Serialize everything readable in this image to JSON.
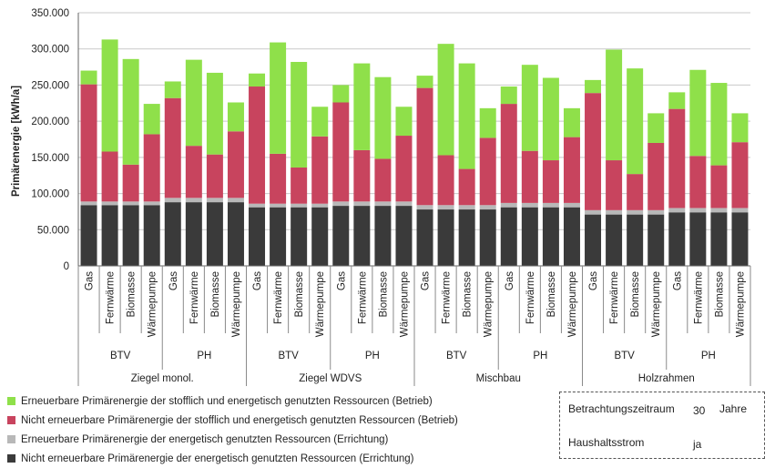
{
  "chart_data": {
    "type": "bar",
    "stacked": true,
    "ylabel": "Primärenergie [kWh/a]",
    "ylim": [
      0,
      350000
    ],
    "yticks": [
      "0",
      "50.000",
      "100.000",
      "150.000",
      "200.000",
      "250.000",
      "300.000",
      "350.000"
    ],
    "grid": true,
    "legend_position": "bottom-left",
    "categories": [
      "Gas",
      "Fernwärme",
      "Biomasse",
      "Wärmepumpe"
    ],
    "level2": [
      "BTV",
      "PH"
    ],
    "level3": [
      "Ziegel monol.",
      "Ziegel WDVS",
      "Mischbau",
      "Holzrahmen"
    ],
    "series": [
      {
        "name": "Nicht erneuerbare Primärenergie der energetisch genutzten Ressourcen (Errichtung)",
        "color": "#3a3a3a"
      },
      {
        "name": "Erneuerbare Primärenergie der energetisch genutzten Ressourcen (Errichtung)",
        "color": "#b8b8b8"
      },
      {
        "name": "Nicht erneuerbare Primärenergie der stofflich und energetisch genutzten Ressourcen (Betrieb)",
        "color": "#c8445e"
      },
      {
        "name": "Erneuerbare Primärenergie der stofflich und energetisch genutzten Ressourcen (Betrieb)",
        "color": "#8fe04a"
      }
    ],
    "stack_totals": [
      [
        84000,
        89000,
        251000,
        270000
      ],
      [
        84000,
        89000,
        158000,
        313000
      ],
      [
        84000,
        89000,
        140000,
        286000
      ],
      [
        84000,
        89000,
        182000,
        224000
      ],
      [
        88000,
        94000,
        232000,
        255000
      ],
      [
        88000,
        94000,
        166000,
        285000
      ],
      [
        88000,
        94000,
        154000,
        267000
      ],
      [
        88000,
        94000,
        186000,
        226000
      ],
      [
        81000,
        86000,
        248000,
        266000
      ],
      [
        81000,
        86000,
        155000,
        309000
      ],
      [
        81000,
        86000,
        136000,
        282000
      ],
      [
        81000,
        86000,
        179000,
        220000
      ],
      [
        83000,
        89000,
        226000,
        250000
      ],
      [
        83000,
        89000,
        160000,
        280000
      ],
      [
        83000,
        89000,
        148000,
        261000
      ],
      [
        83000,
        89000,
        180000,
        220000
      ],
      [
        78000,
        84000,
        246000,
        263000
      ],
      [
        78000,
        84000,
        153000,
        307000
      ],
      [
        78000,
        84000,
        134000,
        280000
      ],
      [
        78000,
        84000,
        177000,
        218000
      ],
      [
        81000,
        87000,
        224000,
        248000
      ],
      [
        81000,
        87000,
        159000,
        278000
      ],
      [
        81000,
        87000,
        146000,
        260000
      ],
      [
        81000,
        87000,
        178000,
        218000
      ],
      [
        71000,
        77000,
        239000,
        257000
      ],
      [
        71000,
        77000,
        146000,
        299000
      ],
      [
        71000,
        77000,
        127000,
        273000
      ],
      [
        71000,
        77000,
        170000,
        211000
      ],
      [
        74000,
        80000,
        217000,
        240000
      ],
      [
        74000,
        80000,
        152000,
        271000
      ],
      [
        74000,
        80000,
        139000,
        253000
      ],
      [
        74000,
        80000,
        171000,
        211000
      ]
    ]
  },
  "legend": {
    "items": [
      {
        "label": "Erneuerbare Primärenergie der stofflich und energetisch genutzten Ressourcen (Betrieb)",
        "color": "#8fe04a"
      },
      {
        "label": "Nicht erneuerbare Primärenergie der stofflich und energetisch genutzten Ressourcen (Betrieb)",
        "color": "#c8445e"
      },
      {
        "label": "Erneuerbare Primärenergie der energetisch genutzten Ressourcen (Errichtung)",
        "color": "#b8b8b8"
      },
      {
        "label": "Nicht erneuerbare Primärenergie der energetisch genutzten Ressourcen (Errichtung)",
        "color": "#3a3a3a"
      }
    ]
  },
  "info": {
    "period_label": "Betrachtungszeitraum",
    "period_value": "30",
    "period_unit": "Jahre",
    "household_label": "Haushaltsstrom",
    "household_value": "ja"
  }
}
